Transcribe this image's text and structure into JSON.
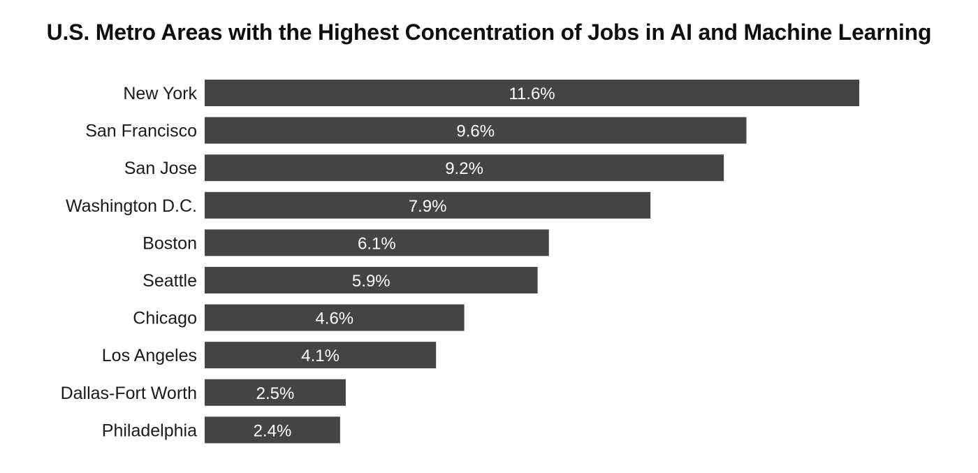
{
  "chart_data": {
    "type": "bar",
    "orientation": "horizontal",
    "title": "U.S. Metro Areas with the Highest Concentration of Jobs in AI and Machine Learning",
    "categories": [
      "New York",
      "San Francisco",
      "San Jose",
      "Washington D.C.",
      "Boston",
      "Seattle",
      "Chicago",
      "Los Angeles",
      "Dallas-Fort Worth",
      "Philadelphia"
    ],
    "values": [
      11.6,
      9.6,
      9.2,
      7.9,
      6.1,
      5.9,
      4.6,
      4.1,
      2.5,
      2.4
    ],
    "data_labels": [
      "11.6%",
      "9.6%",
      "9.2%",
      "7.9%",
      "6.1%",
      "5.9%",
      "4.6%",
      "4.1%",
      "2.5%",
      "2.4%"
    ],
    "unit": "%",
    "xlim": [
      0,
      11.6
    ],
    "grid": false,
    "legend": "none",
    "bar_color": "#444444",
    "label_color": "#ffffff"
  }
}
